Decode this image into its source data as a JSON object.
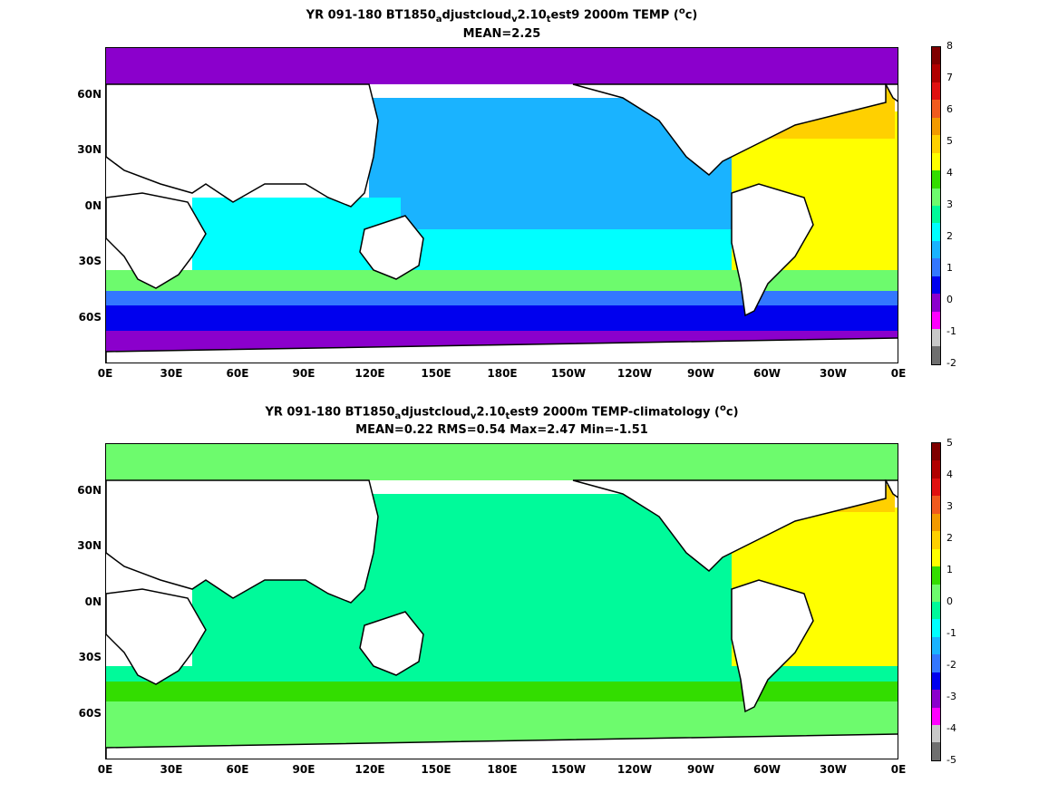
{
  "panels": [
    {
      "title_parts": [
        "YR 091-180 BT1850",
        "a",
        "djustcloud",
        "v",
        "2.10",
        "t",
        "est9 2000m TEMP (",
        "o",
        "c)"
      ],
      "stats": "MEAN=2.25",
      "colorbar": {
        "labels": [
          "8",
          "7",
          "6",
          "5",
          "4",
          "3",
          "2",
          "1",
          "0",
          "-1",
          "-2"
        ],
        "colors": [
          "#7f0000",
          "#b00000",
          "#e01010",
          "#f05a1e",
          "#f29a00",
          "#ffd000",
          "#ffff00",
          "#33dd00",
          "#6dfb6d",
          "#00fa9a",
          "#00ffff",
          "#1ab3ff",
          "#3377ff",
          "#0000ee",
          "#8b00cc",
          "#ff00ff",
          "#c8c8c8",
          "#6f6f6f"
        ],
        "value_range": [
          -2,
          8
        ]
      },
      "fields": {
        "arctic": "#8b00cc",
        "north_pacific": "#1ab3ff",
        "atlantic": "#ffff00",
        "north_atlantic": "#ffd000",
        "indian": "#00ffff",
        "southern_ocean": "#0000ee",
        "southern_mid": "#3377ff",
        "antarctic_margin": "#8b00cc",
        "band_south": "#6dfb6d"
      }
    },
    {
      "title_parts": [
        "YR 091-180 BT1850",
        "a",
        "djustcloud",
        "v",
        "2.10",
        "t",
        "est9 2000m TEMP-climatology (",
        "o",
        "c)"
      ],
      "stats": "MEAN=0.22   RMS=0.54   Max=2.47   Min=-1.51",
      "colorbar": {
        "labels": [
          "5",
          "4",
          "3",
          "2",
          "1",
          "0",
          "-1",
          "-2",
          "-3",
          "-4",
          "-5"
        ],
        "colors": [
          "#7f0000",
          "#b00000",
          "#e01010",
          "#f05a1e",
          "#f29a00",
          "#ffd000",
          "#ffff00",
          "#33dd00",
          "#6dfb6d",
          "#00fa9a",
          "#00ffff",
          "#1ab3ff",
          "#3377ff",
          "#0000ee",
          "#8b00cc",
          "#ff00ff",
          "#c8c8c8",
          "#6f6f6f"
        ],
        "value_range": [
          -5,
          5
        ]
      },
      "fields": {
        "arctic": "#6dfb6d",
        "north_pacific": "#00fa9a",
        "atlantic": "#ffff00",
        "north_atlantic": "#ffd000",
        "indian": "#00fa9a",
        "southern_ocean": "#6dfb6d",
        "southern_mid": "#33dd00",
        "antarctic_margin": "#6dfb6d",
        "band_south": "#00fa9a"
      }
    }
  ],
  "lat_ticks": [
    "60N",
    "30N",
    "0N",
    "30S",
    "60S"
  ],
  "lon_ticks": [
    "0E",
    "30E",
    "60E",
    "90E",
    "120E",
    "150E",
    "180E",
    "150W",
    "120W",
    "90W",
    "60W",
    "30W",
    "0E"
  ]
}
